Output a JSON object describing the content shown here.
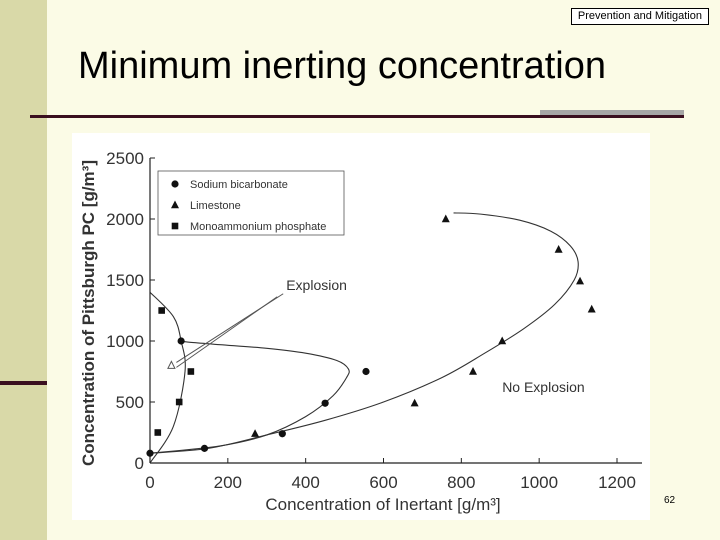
{
  "header": {
    "tag": "Prevention and Mitigation"
  },
  "slide": {
    "title": "Minimum inerting concentration",
    "page_number": "62"
  },
  "colors": {
    "sidebar": "#d9d9a8",
    "accent": "#3a0f1f",
    "background": "#fbfbe6"
  },
  "chart_data": {
    "type": "scatter",
    "xlabel": "Concentration of Inertant [g/m³]",
    "ylabel": "Concentration of Pittsburgh PC [g/m³]",
    "xlim": [
      0,
      1200
    ],
    "ylim": [
      0,
      2500
    ],
    "xticks": [
      0,
      200,
      400,
      600,
      800,
      1000,
      1200
    ],
    "yticks": [
      0,
      500,
      1000,
      1500,
      2000,
      2500
    ],
    "grid": false,
    "legend": "top-left",
    "series": [
      {
        "name": "Sodium bicarbonate",
        "marker": "circle",
        "x": [
          0,
          140,
          340,
          450,
          555,
          80
        ],
        "y": [
          80,
          120,
          240,
          490,
          750,
          1000
        ]
      },
      {
        "name": "Limestone",
        "marker": "triangle",
        "x": [
          270,
          680,
          830,
          905,
          760,
          1050,
          1105,
          1135
        ],
        "y": [
          240,
          490,
          750,
          1000,
          2000,
          1750,
          1490,
          1260
        ]
      },
      {
        "name": "Monoammonium phosphate",
        "marker": "square",
        "x": [
          20,
          75,
          105,
          30
        ],
        "y": [
          250,
          500,
          750,
          1250
        ]
      }
    ],
    "curves": [
      {
        "x": [
          0,
          60,
          90,
          80,
          60,
          0
        ],
        "y": [
          0,
          300,
          750,
          1000,
          1200,
          1400
        ]
      },
      {
        "x": [
          0,
          180,
          300,
          400,
          470,
          505,
          510,
          480,
          400,
          300,
          180,
          100,
          80
        ],
        "y": [
          80,
          140,
          230,
          380,
          550,
          700,
          770,
          840,
          900,
          940,
          970,
          990,
          1000
        ]
      },
      {
        "x": [
          0,
          150,
          300,
          450,
          600,
          750,
          860,
          960,
          1040,
          1090,
          1100,
          1080,
          1030,
          950,
          850,
          780
        ],
        "y": [
          80,
          120,
          230,
          350,
          500,
          700,
          900,
          1100,
          1300,
          1500,
          1650,
          1780,
          1900,
          1990,
          2040,
          2050
        ]
      }
    ],
    "annotations": [
      {
        "text": "Explosion",
        "x": 350,
        "y": 1420
      },
      {
        "text": "No Explosion",
        "x": 905,
        "y": 580
      }
    ],
    "arrow_target": {
      "x": 55,
      "y": 800
    }
  }
}
